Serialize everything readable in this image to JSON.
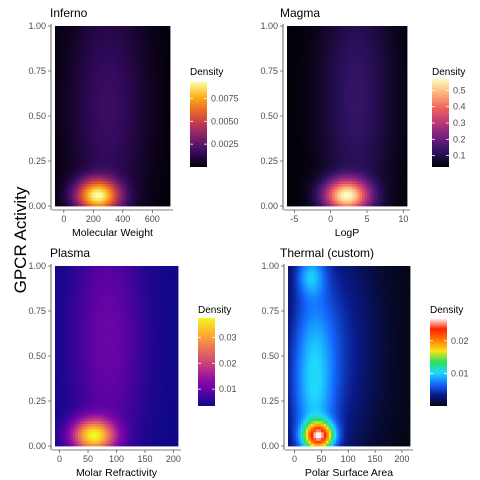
{
  "figure": {
    "shared_ylabel": "GPCR Activity"
  },
  "chart_data": [
    {
      "type": "heatmap",
      "title": "Inferno",
      "xlabel": "Molecular Weight",
      "ylabel": "GPCR Activity",
      "xlim": [
        -60,
        720
      ],
      "ylim": [
        0,
        1
      ],
      "xticks": [
        0,
        200,
        400,
        600
      ],
      "yticks": [
        0.0,
        0.25,
        0.5,
        0.75,
        1.0
      ],
      "ytick_labels": [
        "0.00",
        "0.25",
        "0.50",
        "0.75",
        "1.00"
      ],
      "colormap": "inferno",
      "colors": [
        "#000004",
        "#320a5e",
        "#781c6d",
        "#bc3754",
        "#ed6925",
        "#fbb41a",
        "#fcffa4"
      ],
      "legend": {
        "title": "Density",
        "min": 0,
        "max": 0.0093,
        "ticks": [
          0.0025,
          0.005,
          0.0075
        ],
        "tick_labels": [
          "0.0025",
          "0.0050",
          "0.0075"
        ],
        "placement": "right"
      },
      "density_peaks": [
        {
          "x": 230,
          "y": 0.06,
          "sx": 95,
          "sy": 0.06,
          "w": 1.0
        },
        {
          "x": 300,
          "y": 0.55,
          "sx": 170,
          "sy": 0.45,
          "w": 0.13
        }
      ]
    },
    {
      "type": "heatmap",
      "title": "Magma",
      "xlabel": "LogP",
      "ylabel": "GPCR Activity",
      "xlim": [
        -6,
        10.5
      ],
      "ylim": [
        0,
        1
      ],
      "xticks": [
        -5,
        0,
        5,
        10
      ],
      "yticks": [
        0.0,
        0.25,
        0.5,
        0.75,
        1.0
      ],
      "ytick_labels": [
        "0.00",
        "0.25",
        "0.50",
        "0.75",
        "1.00"
      ],
      "colormap": "magma",
      "colors": [
        "#000004",
        "#2c115f",
        "#721f81",
        "#b73779",
        "#f1605d",
        "#feb078",
        "#fcfdbf"
      ],
      "legend": {
        "title": "Density",
        "min": 0.03,
        "max": 0.57,
        "ticks": [
          0.1,
          0.2,
          0.3,
          0.4,
          0.5
        ],
        "tick_labels": [
          "0.1",
          "0.2",
          "0.3",
          "0.4",
          "0.5"
        ],
        "placement": "right"
      },
      "density_peaks": [
        {
          "x": 2.2,
          "y": 0.06,
          "sx": 2.0,
          "sy": 0.06,
          "w": 1.0
        },
        {
          "x": 3.5,
          "y": 0.6,
          "sx": 3.2,
          "sy": 0.45,
          "w": 0.13
        }
      ]
    },
    {
      "type": "heatmap",
      "title": "Plasma",
      "xlabel": "Molar Refractivity",
      "ylabel": "GPCR Activity",
      "xlim": [
        -8,
        208
      ],
      "ylim": [
        0,
        1
      ],
      "xticks": [
        0,
        50,
        100,
        150,
        200
      ],
      "yticks": [
        0.0,
        0.25,
        0.5,
        0.75,
        1.0
      ],
      "ytick_labels": [
        "0.00",
        "0.25",
        "0.50",
        "0.75",
        "1.00"
      ],
      "colormap": "plasma",
      "colors": [
        "#0d0887",
        "#5402a3",
        "#8b0aa5",
        "#b93289",
        "#db5c68",
        "#f48849",
        "#febc2a",
        "#f0f921"
      ],
      "legend": {
        "title": "Density",
        "min": 0.0035,
        "max": 0.0375,
        "ticks": [
          0.01,
          0.02,
          0.03
        ],
        "tick_labels": [
          "0.01",
          "0.02",
          "0.03"
        ],
        "placement": "right"
      },
      "density_peaks": [
        {
          "x": 60,
          "y": 0.06,
          "sx": 24,
          "sy": 0.06,
          "w": 1.0
        },
        {
          "x": 85,
          "y": 0.6,
          "sx": 40,
          "sy": 0.45,
          "w": 0.14
        }
      ]
    },
    {
      "type": "heatmap",
      "title": "Thermal (custom)",
      "xlabel": "Polar Surface Area",
      "ylabel": "GPCR Activity",
      "xlim": [
        -12,
        215
      ],
      "ylim": [
        0,
        1
      ],
      "xticks": [
        0,
        50,
        100,
        150,
        200
      ],
      "yticks": [
        0.0,
        0.25,
        0.5,
        0.75,
        1.0
      ],
      "ytick_labels": [
        "0.00",
        "0.25",
        "0.50",
        "0.75",
        "1.00"
      ],
      "colormap": "thermal",
      "colors": [
        "#050510",
        "#0a1a8c",
        "#1469ff",
        "#1fd8ff",
        "#29e05a",
        "#ffe11a",
        "#ff7a00",
        "#ff2200",
        "#ffffff"
      ],
      "legend": {
        "title": "Density",
        "min": 0.0,
        "max": 0.027,
        "ticks": [
          0.01,
          0.02
        ],
        "tick_labels": [
          "0.01",
          "0.02"
        ],
        "placement": "right"
      },
      "density_peaks": [
        {
          "x": 45,
          "y": 0.06,
          "sx": 18,
          "sy": 0.05,
          "w": 1.0
        },
        {
          "x": 35,
          "y": 0.35,
          "sx": 28,
          "sy": 0.35,
          "w": 0.28
        },
        {
          "x": 30,
          "y": 0.95,
          "sx": 18,
          "sy": 0.08,
          "w": 0.22
        },
        {
          "x": 70,
          "y": 0.55,
          "sx": 55,
          "sy": 0.45,
          "w": 0.12
        }
      ]
    }
  ]
}
